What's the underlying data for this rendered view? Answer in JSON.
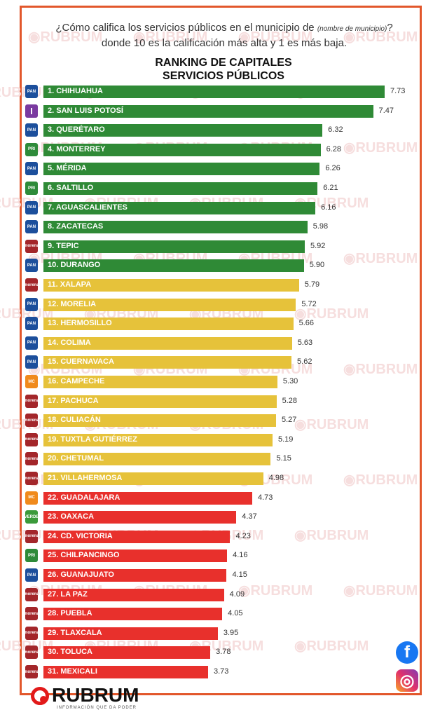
{
  "question_main": "¿Cómo califica los servicios públicos en el municipio de ",
  "question_italic1": "(nombre de municipio)",
  "question_rest": "? donde 10 es la calificación más alta y 1 es más baja.",
  "watermark": "RUBRUM",
  "brand": {
    "name": "RUBRUM",
    "tagline": "INFORMACIÓN QUE DA PODER"
  },
  "social": {
    "facebook": "f",
    "instagram": "◎"
  },
  "colors": {
    "green": "#2f8a36",
    "yellow": "#e6c23a",
    "red": "#e8302c",
    "frame": "#e2572b"
  },
  "party_styles": {
    "PAN": {
      "bg": "#1c4f9c",
      "text": "PAN"
    },
    "IND": {
      "bg": "#7a3aa0",
      "text": "I"
    },
    "PRI": {
      "bg": "#2e8b3a",
      "text": "PRI"
    },
    "MORENA": {
      "bg": "#a3262a",
      "text": "morena"
    },
    "MC": {
      "bg": "#f08a1c",
      "text": "MC"
    },
    "VERDE": {
      "bg": "#3a9a3a",
      "text": "VERDE"
    }
  },
  "chart_data": {
    "type": "bar",
    "orientation": "horizontal",
    "title": "RANKING DE CAPITALES",
    "subtitle": "SERVICIOS PÚBLICOS",
    "xlim": [
      0,
      10
    ],
    "grid": false,
    "categories": [
      "1. CHIHUAHUA",
      "2. SAN LUIS POTOSÍ",
      "3. QUERÉTARO",
      "4. MONTERREY",
      "5. MÉRIDA",
      "6. SALTILLO",
      "7. AGUASCALIENTES",
      "8. ZACATECAS",
      "9. TEPIC",
      "10. DURANGO",
      "11. XALAPA",
      "12. MORELIA",
      "13. HERMOSILLO",
      "14. COLIMA",
      "15. CUERNAVACA",
      "16. CAMPECHE",
      "17. PACHUCA",
      "18. CULIACÁN",
      "19. TUXTLA GUTIÉRREZ",
      "20. CHETUMAL",
      "21. VILLAHERMOSA",
      "22. GUADALAJARA",
      "23. OAXACA",
      "24. CD. VICTORIA",
      "25. CHILPANCINGO",
      "26. GUANAJUATO",
      "27. LA PAZ",
      "28. PUEBLA",
      "29. TLAXCALA",
      "30. TOLUCA",
      "31. MEXICALI"
    ],
    "values": [
      7.73,
      7.47,
      6.32,
      6.28,
      6.26,
      6.21,
      6.16,
      5.98,
      5.92,
      5.9,
      5.79,
      5.72,
      5.66,
      5.63,
      5.62,
      5.3,
      5.28,
      5.27,
      5.19,
      5.15,
      4.98,
      4.73,
      4.37,
      4.23,
      4.16,
      4.15,
      4.09,
      4.05,
      3.95,
      3.78,
      3.73
    ],
    "value_labels": [
      "7.73",
      "7.47",
      "6.32",
      "6.28",
      "6.26",
      "6.21",
      "6.16",
      "5.98",
      "5.92",
      "5.90",
      "5.79",
      "5.72",
      "5.66",
      "5.63",
      "5.62",
      "5.30",
      "5.28",
      "5.27",
      "5.19",
      "5.15",
      "4.98",
      "4.73",
      "4.37",
      "4.23",
      "4.16",
      "4.15",
      "4.09",
      "4.05",
      "3.95",
      "3.78",
      "3.73"
    ],
    "bar_color_group": [
      "green",
      "green",
      "green",
      "green",
      "green",
      "green",
      "green",
      "green",
      "green",
      "green",
      "yellow",
      "yellow",
      "yellow",
      "yellow",
      "yellow",
      "yellow",
      "yellow",
      "yellow",
      "yellow",
      "yellow",
      "yellow",
      "red",
      "red",
      "red",
      "red",
      "red",
      "red",
      "red",
      "red",
      "red",
      "red"
    ],
    "party": [
      "PAN",
      "IND",
      "PAN",
      "PRI",
      "PAN",
      "PRI",
      "PAN",
      "PAN",
      "MORENA",
      "PAN",
      "MORENA",
      "PAN",
      "PAN",
      "PAN",
      "PAN",
      "MC",
      "MORENA",
      "MORENA",
      "MORENA",
      "MORENA",
      "MORENA",
      "MC",
      "VERDE",
      "MORENA",
      "PRI",
      "PAN",
      "MORENA",
      "MORENA",
      "MORENA",
      "MORENA",
      "MORENA"
    ]
  }
}
